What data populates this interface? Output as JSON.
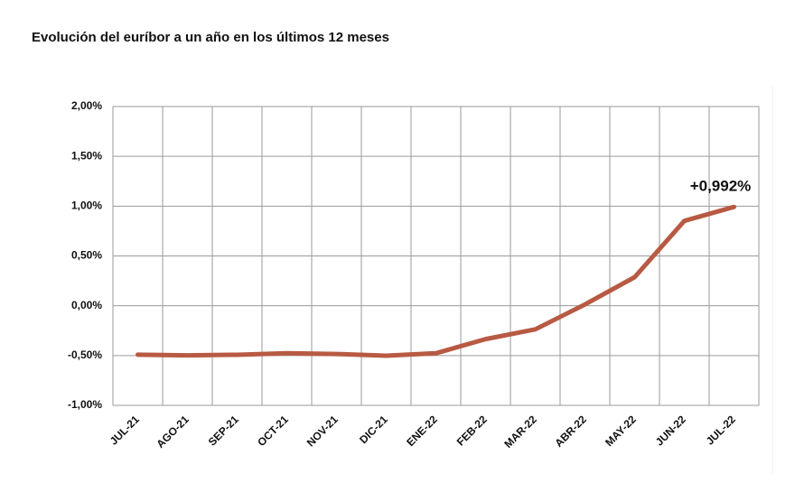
{
  "chart_data": {
    "type": "line",
    "title": "Evolución del euríbor a un año en los últimos 12 meses",
    "categories": [
      "JUL-21",
      "AGO-21",
      "SEP-21",
      "OCT-21",
      "NOV-21",
      "DIC-21",
      "ENE-22",
      "FEB-22",
      "MAR-22",
      "ABR-22",
      "MAY-22",
      "JUN-22",
      "JUL-22"
    ],
    "series": [
      {
        "color": "#b85a43",
        "values": [
          -0.491,
          -0.498,
          -0.492,
          -0.477,
          -0.484,
          -0.502,
          -0.477,
          -0.335,
          -0.237,
          0.013,
          0.287,
          0.852,
          0.992
        ],
        "value_labels": [
          null,
          null,
          null,
          null,
          null,
          null,
          null,
          null,
          null,
          null,
          null,
          null,
          "+0,992%"
        ]
      }
    ],
    "ylim": [
      -1,
      2
    ],
    "yticks": [
      {
        "value": -1,
        "label": "-1,00%"
      },
      {
        "value": -0.5,
        "label": "-0,50%"
      },
      {
        "value": 0,
        "label": "0,00%"
      },
      {
        "value": 0.5,
        "label": "0,50%"
      },
      {
        "value": 1,
        "label": "1,00%"
      },
      {
        "value": 1.5,
        "label": "1,50%"
      },
      {
        "value": 2,
        "label": "2,00%"
      }
    ],
    "grid": true
  }
}
